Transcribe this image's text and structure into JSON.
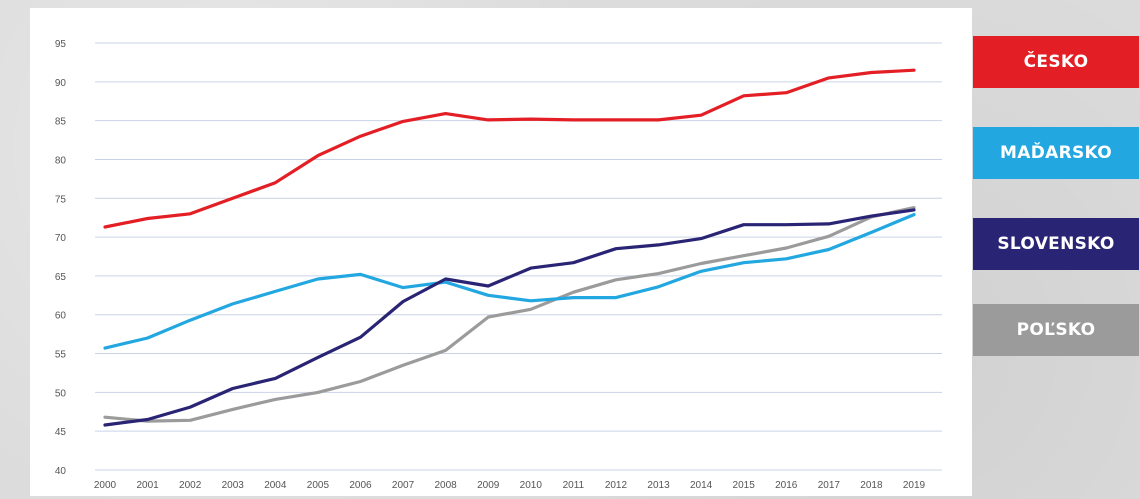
{
  "chart_data": {
    "type": "line",
    "x": [
      "2000",
      "2001",
      "2002",
      "2003",
      "2004",
      "2005",
      "2006",
      "2007",
      "2008",
      "2009",
      "2010",
      "2011",
      "2012",
      "2013",
      "2014",
      "2015",
      "2016",
      "2017",
      "2018",
      "2019"
    ],
    "y_ticks": [
      40,
      45,
      50,
      55,
      60,
      65,
      70,
      75,
      80,
      85,
      90,
      95
    ],
    "ylim": [
      40,
      95
    ],
    "grid": true,
    "legend_position": "right",
    "series": [
      {
        "name": "ČESKO",
        "color": "#e31e24",
        "values": [
          71.3,
          72.4,
          73.0,
          75.0,
          77.0,
          80.5,
          83.0,
          84.9,
          85.9,
          85.1,
          85.2,
          85.1,
          85.1,
          85.1,
          85.7,
          88.2,
          88.6,
          90.5,
          91.2,
          91.5
        ]
      },
      {
        "name": "MAĎARSKO",
        "color": "#22a7e0",
        "values": [
          55.7,
          57.0,
          59.3,
          61.4,
          63.0,
          64.6,
          65.2,
          63.5,
          64.2,
          62.5,
          61.8,
          62.2,
          62.2,
          63.6,
          65.6,
          66.7,
          67.2,
          68.4,
          70.6,
          72.9
        ]
      },
      {
        "name": "SLOVENSKO",
        "color": "#2a2475",
        "values": [
          45.8,
          46.5,
          48.1,
          50.5,
          51.8,
          54.5,
          57.1,
          61.7,
          64.6,
          63.7,
          66.0,
          66.7,
          68.5,
          69.0,
          69.8,
          71.6,
          71.6,
          71.7,
          72.7,
          73.5
        ]
      },
      {
        "name": "POĽSKO",
        "color": "#9b9b9b",
        "values": [
          46.8,
          46.3,
          46.4,
          47.8,
          49.1,
          50.0,
          51.4,
          53.5,
          55.4,
          59.7,
          60.7,
          62.9,
          64.5,
          65.3,
          66.6,
          67.6,
          68.6,
          70.1,
          72.6,
          73.8
        ]
      }
    ]
  },
  "legend": {
    "items": [
      {
        "label": "ČESKO",
        "color": "#e31e24"
      },
      {
        "label": "MAĎARSKO",
        "color": "#22a7e0"
      },
      {
        "label": "SLOVENSKO",
        "color": "#2a2475"
      },
      {
        "label": "POĽSKO",
        "color": "#9b9b9b"
      }
    ]
  }
}
